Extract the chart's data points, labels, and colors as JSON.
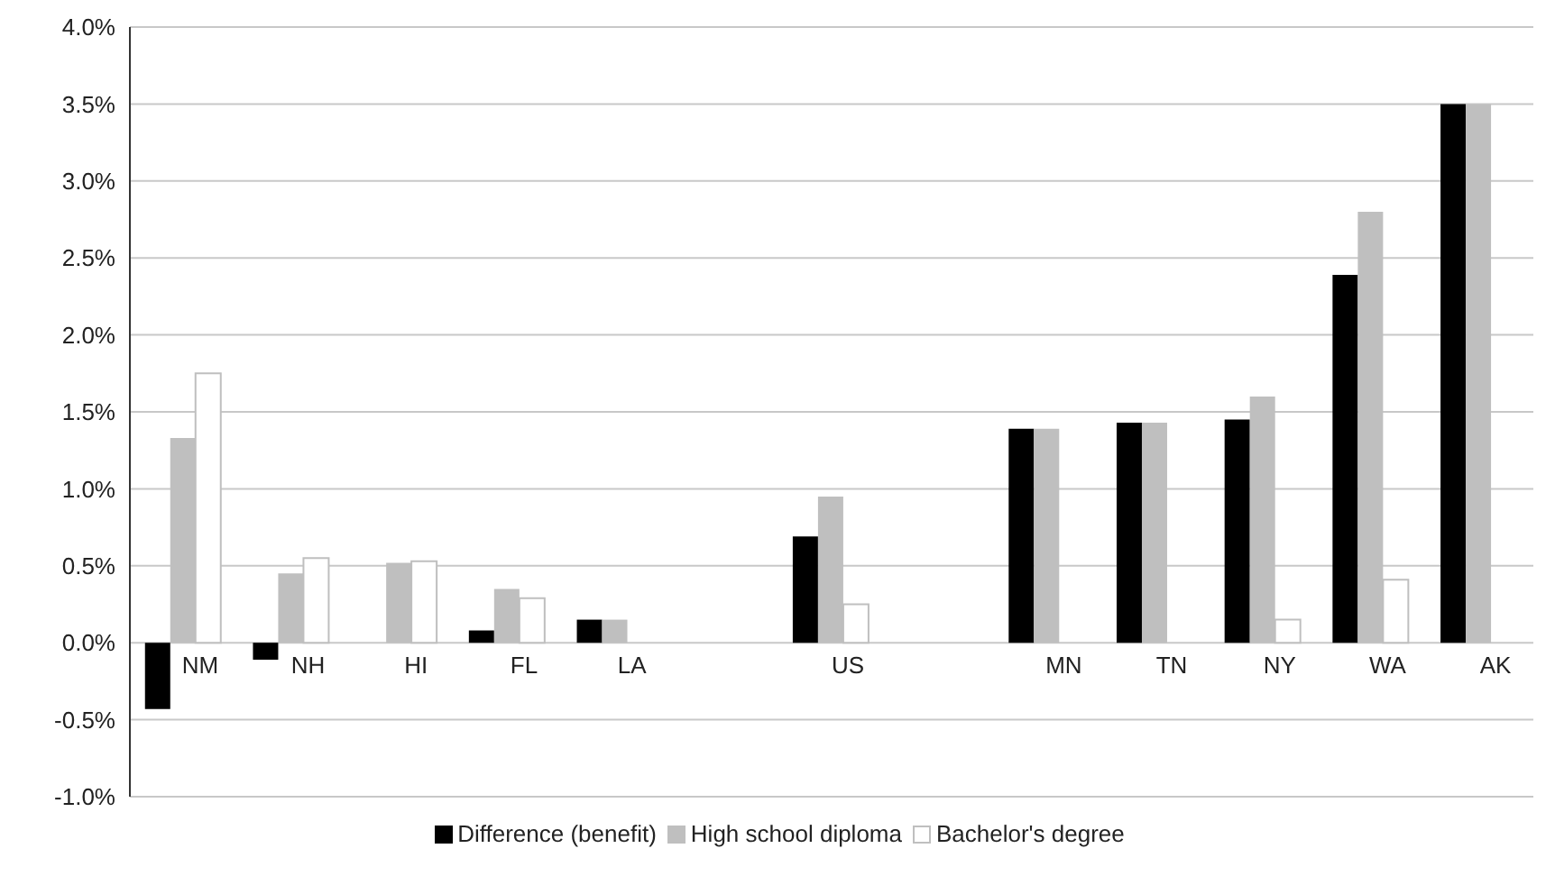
{
  "chart_data": {
    "type": "bar",
    "categories": [
      "NM",
      "NH",
      "HI",
      "FL",
      "LA",
      null,
      "US",
      null,
      "MN",
      "TN",
      "NY",
      "WA",
      "AK"
    ],
    "series": [
      {
        "name": "Difference (benefit)",
        "color": "#000000",
        "values": [
          -0.43,
          -0.11,
          0,
          0.08,
          0.15,
          null,
          0.69,
          null,
          1.39,
          1.43,
          1.45,
          2.39,
          3.5
        ]
      },
      {
        "name": "High school diploma",
        "color": "#bfbfbf",
        "values": [
          1.33,
          0.45,
          0.52,
          0.35,
          0.15,
          null,
          0.95,
          null,
          1.39,
          1.43,
          1.6,
          2.8,
          3.5
        ]
      },
      {
        "name": "Bachelor's degree",
        "color": "#ffffff",
        "values": [
          1.75,
          0.55,
          0.53,
          0.29,
          null,
          null,
          0.25,
          null,
          null,
          null,
          0.15,
          0.41,
          null
        ]
      }
    ],
    "ylim": [
      -1,
      4
    ],
    "yticks": [
      {
        "value": -1,
        "label": "-1.0%"
      },
      {
        "value": -0.5,
        "label": "-0.5%"
      },
      {
        "value": 0,
        "label": "0.0%"
      },
      {
        "value": 0.5,
        "label": "0.5%"
      },
      {
        "value": 1,
        "label": "1.0%"
      },
      {
        "value": 1.5,
        "label": "1.5%"
      },
      {
        "value": 2,
        "label": "2.0%"
      },
      {
        "value": 2.5,
        "label": "2.5%"
      },
      {
        "value": 3,
        "label": "3.0%"
      },
      {
        "value": 3.5,
        "label": "3.5%"
      },
      {
        "value": 4,
        "label": "4.0%"
      }
    ],
    "grid": "y",
    "legend": "bottom"
  }
}
